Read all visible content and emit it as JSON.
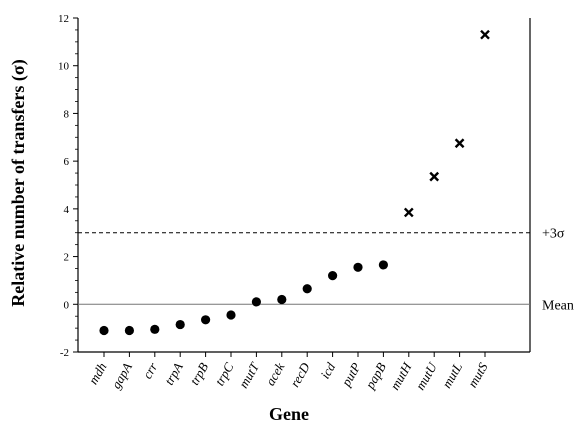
{
  "chart_data": {
    "type": "scatter",
    "xlabel": "Gene",
    "ylabel": "Relative number of transfers (σ)",
    "ylim": [
      -2,
      12
    ],
    "yticks": [
      -2,
      0,
      2,
      4,
      6,
      8,
      10,
      12
    ],
    "grid": false,
    "categories": [
      "mdh",
      "gapA",
      "crr",
      "trpA",
      "trpB",
      "trpC",
      "mutT",
      "acek",
      "recD",
      "icd",
      "putP",
      "papB",
      "mutH",
      "mutU",
      "mutL",
      "mutS"
    ],
    "series": [
      {
        "marker": "circle",
        "color": "#000000",
        "points": [
          {
            "x": "mdh",
            "y": -1.1
          },
          {
            "x": "gapA",
            "y": -1.1
          },
          {
            "x": "crr",
            "y": -1.05
          },
          {
            "x": "trpA",
            "y": -0.85
          },
          {
            "x": "trpB",
            "y": -0.65
          },
          {
            "x": "trpC",
            "y": -0.45
          },
          {
            "x": "mutT",
            "y": 0.1
          },
          {
            "x": "acek",
            "y": 0.2
          },
          {
            "x": "recD",
            "y": 0.65
          },
          {
            "x": "icd",
            "y": 1.2
          },
          {
            "x": "putP",
            "y": 1.55
          },
          {
            "x": "papB",
            "y": 1.65
          }
        ]
      },
      {
        "marker": "x",
        "color": "#000000",
        "points": [
          {
            "x": "mutH",
            "y": 3.85
          },
          {
            "x": "mutU",
            "y": 5.35
          },
          {
            "x": "mutL",
            "y": 6.75
          },
          {
            "x": "mutS",
            "y": 11.3
          }
        ]
      }
    ],
    "reference_lines": [
      {
        "y": 0,
        "style": "solid",
        "label": "Mean"
      },
      {
        "y": 3,
        "style": "dashed",
        "label": "+3σ"
      }
    ]
  }
}
